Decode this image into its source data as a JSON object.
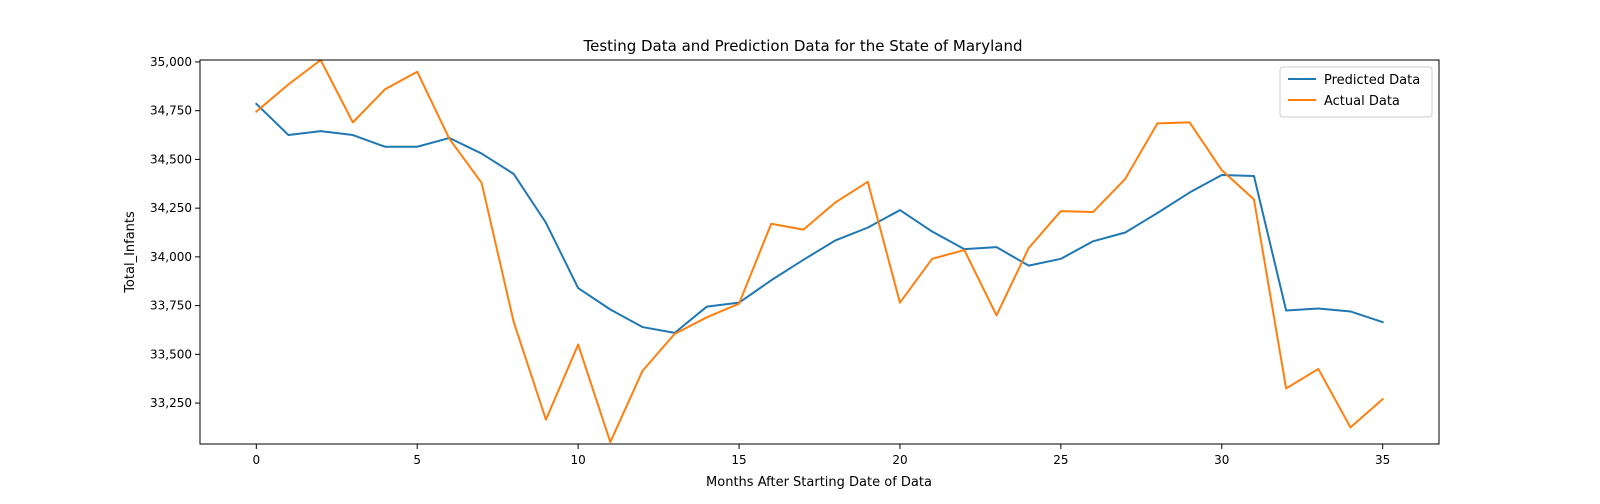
{
  "chart_data": {
    "type": "line",
    "title": "Testing Data and Prediction Data for the State of Maryland",
    "xlabel": "Months After Starting Date of Data",
    "ylabel": "Total_Infants",
    "xlim": [
      -1.75,
      36.75
    ],
    "ylim": [
      33040,
      35010
    ],
    "x_ticks": [
      0,
      5,
      10,
      15,
      20,
      25,
      30,
      35
    ],
    "y_ticks": [
      33250,
      33500,
      33750,
      34000,
      34250,
      34500,
      34750,
      35000
    ],
    "y_tick_labels": [
      "33,250",
      "33,500",
      "33,750",
      "34,000",
      "34,250",
      "34,500",
      "34,750",
      "35,000"
    ],
    "grid": false,
    "legend_position": "top-right",
    "x": [
      0,
      1,
      2,
      3,
      4,
      5,
      6,
      7,
      8,
      9,
      10,
      11,
      12,
      13,
      14,
      15,
      16,
      17,
      18,
      19,
      20,
      21,
      22,
      23,
      24,
      25,
      26,
      27,
      28,
      29,
      30,
      31,
      32,
      33,
      34,
      35
    ],
    "series": [
      {
        "name": "Predicted Data",
        "color": "#1f77b4",
        "values": [
          34785,
          34625,
          34645,
          34625,
          34565,
          34565,
          34610,
          34530,
          34425,
          34175,
          33840,
          33730,
          33640,
          33610,
          33745,
          33765,
          33880,
          33985,
          34085,
          34150,
          34240,
          34130,
          34040,
          34050,
          33955,
          33990,
          34080,
          34125,
          34225,
          34330,
          34420,
          34415,
          33725,
          33735,
          33720,
          33665
        ]
      },
      {
        "name": "Actual Data",
        "color": "#ff7f0e",
        "values": [
          34745,
          34885,
          35010,
          34690,
          34860,
          34950,
          34605,
          34380,
          33665,
          33165,
          33550,
          33050,
          33415,
          33605,
          33690,
          33760,
          34170,
          34140,
          34280,
          34385,
          33765,
          33990,
          34035,
          33700,
          34045,
          34235,
          34230,
          34400,
          34685,
          34690,
          34445,
          34295,
          33325,
          33425,
          33125,
          33270
        ]
      }
    ]
  }
}
